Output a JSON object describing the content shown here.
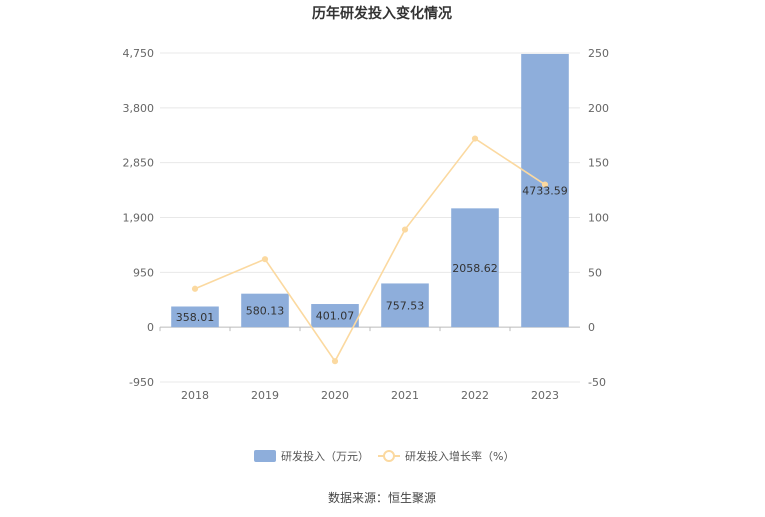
{
  "chart_data": {
    "type": "bar",
    "title": "历年研发投入变化情况",
    "categories": [
      "2018",
      "2019",
      "2020",
      "2021",
      "2022",
      "2023"
    ],
    "series": [
      {
        "name": "研发投入（万元）",
        "type": "bar",
        "axis": "left",
        "values": [
          358.01,
          580.13,
          401.07,
          757.53,
          2058.62,
          4733.59
        ],
        "labels": [
          "358.01",
          "580.13",
          "401.07",
          "757.53",
          "2058.62",
          "4733.59"
        ],
        "color": "#8eaedb"
      },
      {
        "name": "研发投入增长率（%）",
        "type": "line",
        "axis": "right",
        "values": [
          35,
          62,
          -31,
          89,
          172,
          130
        ],
        "color": "#fbd9a0"
      }
    ],
    "y_left": {
      "ylim": [
        -950,
        4750
      ],
      "ticks": [
        -950,
        0,
        950,
        1900,
        2850,
        3800,
        4750
      ],
      "tick_labels": [
        "-950",
        "0",
        "950",
        "1,900",
        "2,850",
        "3,800",
        "4,750"
      ]
    },
    "y_right": {
      "ylim": [
        -50,
        250
      ],
      "ticks": [
        -50,
        0,
        50,
        100,
        150,
        200,
        250
      ],
      "tick_labels": [
        "-50",
        "0",
        "50",
        "100",
        "150",
        "200",
        "250"
      ]
    },
    "grid": true,
    "legend_position": "bottom"
  },
  "source_text": "数据来源：恒生聚源"
}
